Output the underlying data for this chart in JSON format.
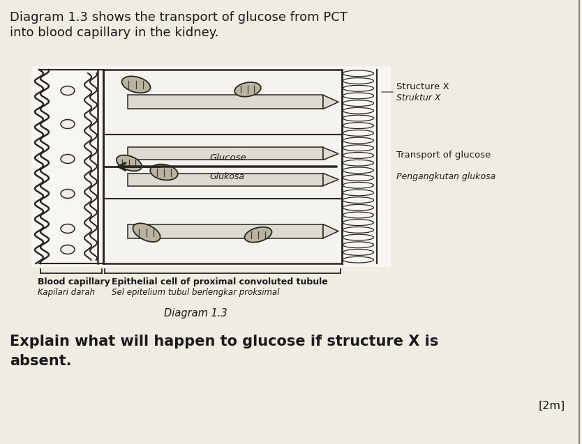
{
  "title_line1": "Diagram 1.3 shows the transport of glucose from PCT",
  "title_line2": "into blood capillary in the kidney.",
  "label_blood_capillary": "Blood capillary",
  "label_blood_capillary_malay": "Kapilari darah",
  "label_epithelial_line1": "Epithelial cell of proximal convoluted tubule",
  "label_epithelial_line2": "Sel epitelium tubul berlengkar proksimal",
  "label_diagram": "Diagram 1.3",
  "label_structure_x": "Structure X",
  "label_struktur_x": "Struktur X",
  "label_transport": "Transport of glucose",
  "label_transport_malay": "Pengangkutan glukosa",
  "label_glucose": "Glucose",
  "label_glucose_malay": "Glukosa",
  "question_line1": "Explain what will happen to glucose if structure X is",
  "question_line2": "absent.",
  "marks": "[2m]",
  "bg_color": "#f0ece4",
  "text_color": "#1a1a1a",
  "diagram_white": "#f8f6f2",
  "cell_fill": "#f5f3ee",
  "cap_fill": "#f0ede8",
  "mito_fill": "#c8c4b0",
  "mito_edge": "#3a3530",
  "line_color": "#2a2520",
  "struct_fill": "#e8e4d8"
}
